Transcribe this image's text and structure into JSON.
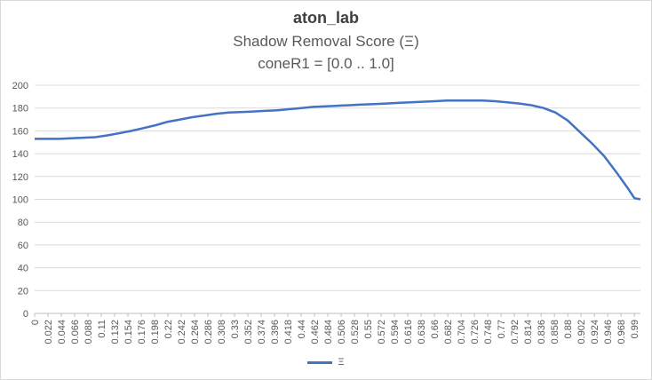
{
  "chart_data": {
    "type": "line",
    "title": "aton_lab",
    "subtitle": "Shadow Removal Score (Ξ)",
    "subtitle2": "coneR1 = [0.0 .. 1.0]",
    "xlabel": "",
    "ylabel": "",
    "ylim": [
      0,
      200
    ],
    "yticks": [
      0,
      20,
      40,
      60,
      80,
      100,
      120,
      140,
      160,
      180,
      200
    ],
    "xticks": [
      "0",
      "0.022",
      "0.044",
      "0.066",
      "0.088",
      "0.11",
      "0.132",
      "0.154",
      "0.176",
      "0.198",
      "0.22",
      "0.242",
      "0.264",
      "0.286",
      "0.308",
      "0.33",
      "0.352",
      "0.374",
      "0.396",
      "0.418",
      "0.44",
      "0.462",
      "0.484",
      "0.506",
      "0.528",
      "0.55",
      "0.572",
      "0.594",
      "0.616",
      "0.638",
      "0.66",
      "0.682",
      "0.704",
      "0.726",
      "0.748",
      "0.77",
      "0.792",
      "0.814",
      "0.836",
      "0.858",
      "0.88",
      "0.902",
      "0.924",
      "0.946",
      "0.968",
      "0.99"
    ],
    "grid": true,
    "legend_position": "bottom",
    "series": [
      {
        "name": "Ξ",
        "color": "#4472c4",
        "x": [
          0,
          0.02,
          0.04,
          0.06,
          0.08,
          0.1,
          0.12,
          0.14,
          0.16,
          0.18,
          0.2,
          0.22,
          0.24,
          0.26,
          0.28,
          0.3,
          0.32,
          0.34,
          0.36,
          0.38,
          0.4,
          0.42,
          0.44,
          0.46,
          0.48,
          0.5,
          0.52,
          0.54,
          0.56,
          0.58,
          0.6,
          0.62,
          0.64,
          0.66,
          0.68,
          0.7,
          0.72,
          0.74,
          0.76,
          0.78,
          0.8,
          0.82,
          0.84,
          0.86,
          0.88,
          0.9,
          0.92,
          0.94,
          0.96,
          0.98,
          0.99,
          1.0
        ],
        "y": [
          153,
          153,
          153,
          153.5,
          154,
          154.5,
          156,
          158,
          160,
          162.5,
          165,
          168,
          170,
          172,
          173.5,
          175,
          176,
          176.5,
          177,
          177.5,
          178,
          179,
          180,
          181,
          181.5,
          182,
          182.5,
          183,
          183.5,
          184,
          184.5,
          185,
          185.5,
          186,
          186.5,
          186.5,
          186.5,
          186.5,
          186,
          185,
          184,
          182.5,
          180,
          176,
          169,
          159,
          149,
          138,
          124,
          109,
          101,
          100
        ]
      }
    ]
  }
}
